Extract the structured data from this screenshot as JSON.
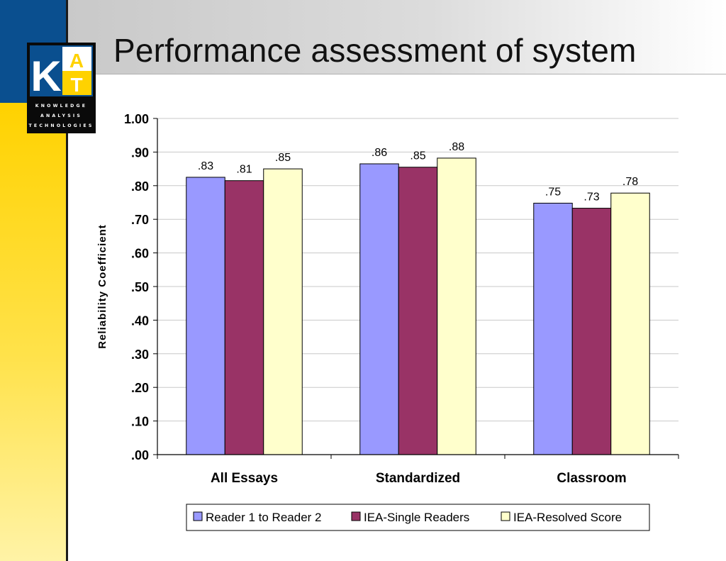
{
  "slide": {
    "title": "Performance assessment of system"
  },
  "logo": {
    "letters": [
      "K",
      "A",
      "T"
    ],
    "lines": [
      "KNOWLEDGE",
      "ANALYSIS",
      "TECHNOLOGIES"
    ]
  },
  "colors": {
    "blue_band": "#0a4f8f",
    "yellow_band": "#ffd200",
    "logo_accent": "#ffd200"
  },
  "chart_data": {
    "type": "bar",
    "title": "",
    "xlabel": "",
    "ylabel": "Reliability Coefficient",
    "ylim": [
      0,
      1
    ],
    "ytick_values": [
      0,
      0.1,
      0.2,
      0.3,
      0.4,
      0.5,
      0.6,
      0.7,
      0.8,
      0.9,
      1.0
    ],
    "ytick_labels": [
      ".00",
      ".10",
      ".20",
      ".30",
      ".40",
      ".50",
      ".60",
      ".70",
      ".80",
      ".90",
      "1.00"
    ],
    "grid": true,
    "legend_position": "bottom",
    "categories": [
      "All Essays",
      "Standardized",
      "Classroom"
    ],
    "series": [
      {
        "name": "Reader 1 to Reader 2",
        "color": "#9999ff",
        "values": [
          0.825,
          0.865,
          0.748
        ],
        "labels": [
          ".83",
          ".86",
          ".75"
        ]
      },
      {
        "name": "IEA-Single Readers",
        "color": "#993366",
        "values": [
          0.815,
          0.855,
          0.733
        ],
        "labels": [
          ".81",
          ".85",
          ".73"
        ]
      },
      {
        "name": "IEA-Resolved Score",
        "color": "#ffffcc",
        "values": [
          0.85,
          0.882,
          0.778
        ],
        "labels": [
          ".85",
          ".88",
          ".78"
        ]
      }
    ]
  }
}
